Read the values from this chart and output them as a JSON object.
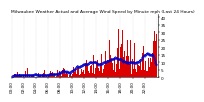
{
  "title": "Milwaukee Weather Actual and Average Wind Speed by Minute mph (Last 24 Hours)",
  "background_color": "#ffffff",
  "bar_color": "#dd0000",
  "avg_color": "#0000cc",
  "n_points": 1440,
  "seed": 42,
  "ylim": [
    0,
    42
  ],
  "yticks": [
    0,
    5,
    10,
    15,
    20,
    25,
    30,
    35,
    40
  ],
  "title_fontsize": 3.2,
  "tick_fontsize": 3.0,
  "grid_color": "#aaaaaa"
}
